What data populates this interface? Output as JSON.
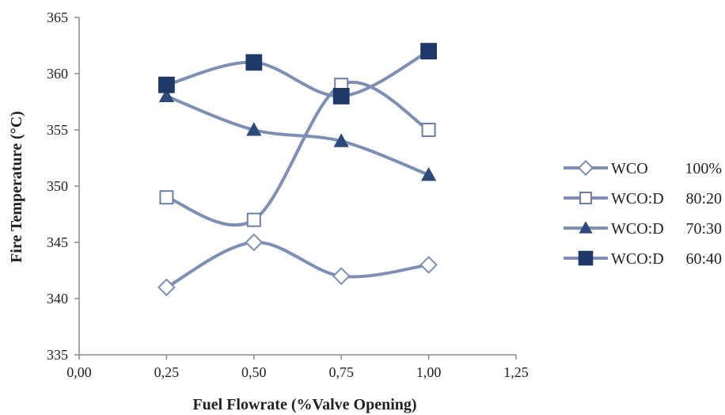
{
  "chart_data": {
    "type": "scatter",
    "title": "",
    "xlabel": "Fuel Flowrate (%Valve Opening)",
    "ylabel": "Fire Temperature (°C)",
    "xlim": [
      0,
      1.25
    ],
    "ylim": [
      335,
      365
    ],
    "x_ticks": [
      0,
      0.25,
      0.5,
      0.75,
      1.0,
      1.25
    ],
    "x_tick_labels": [
      "0,00",
      "0,25",
      "0,50",
      "0,75",
      "1,00",
      "1,25"
    ],
    "y_ticks": [
      335,
      340,
      345,
      350,
      355,
      360,
      365
    ],
    "y_tick_labels": [
      "335",
      "340",
      "345",
      "350",
      "355",
      "360",
      "365"
    ],
    "grid": false,
    "smooth_lines": true,
    "legend_position": "right",
    "x": [
      0.25,
      0.5,
      0.75,
      1.0
    ],
    "series": [
      {
        "name_main": "WCO",
        "name_ratio": "100%",
        "marker": "diamond-open",
        "color": "#7f8fb3",
        "marker_color": "#7f8fb3",
        "values": [
          341,
          345,
          342,
          343
        ]
      },
      {
        "name_main": "WCO:D",
        "name_ratio": "80:20",
        "marker": "square-open",
        "color": "#7f8fb3",
        "marker_color": "#6d7fa8",
        "values": [
          349,
          347,
          359,
          355
        ]
      },
      {
        "name_main": "WCO:D",
        "name_ratio": "70:30",
        "marker": "triangle",
        "color": "#7f8fb3",
        "marker_color": "#2e4a7a",
        "values": [
          358,
          355,
          354,
          351
        ]
      },
      {
        "name_main": "WCO:D",
        "name_ratio": "60:40",
        "marker": "square",
        "color": "#7f8fb3",
        "marker_color": "#1f3868",
        "values": [
          359,
          361,
          358,
          362
        ]
      }
    ]
  }
}
